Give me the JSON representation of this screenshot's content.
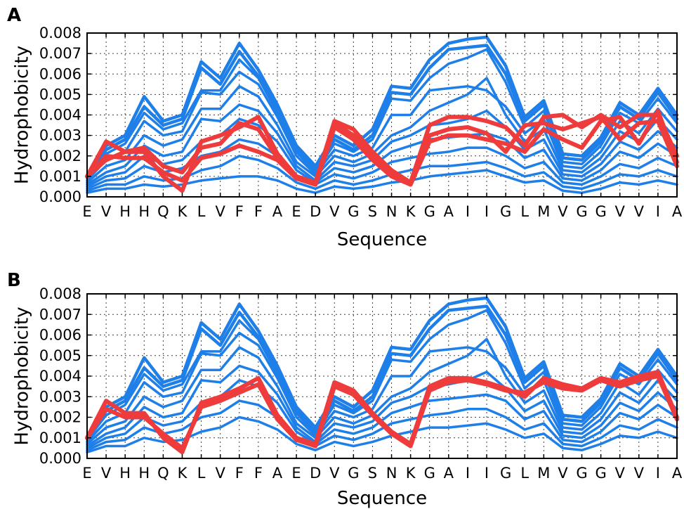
{
  "chart_data": [
    {
      "type": "line",
      "panel_label": "A",
      "xlabel": "Sequence",
      "ylabel": "Hydrophobicity",
      "categories": [
        "E",
        "V",
        "H",
        "H",
        "Q",
        "K",
        "L",
        "V",
        "F",
        "F",
        "A",
        "E",
        "D",
        "V",
        "G",
        "S",
        "N",
        "K",
        "G",
        "A",
        "I",
        "I",
        "G",
        "L",
        "M",
        "V",
        "G",
        "G",
        "V",
        "V",
        "I",
        "A"
      ],
      "ylim": [
        0,
        0.008
      ],
      "yticks": [
        "0.000",
        "0.001",
        "0.002",
        "0.003",
        "0.004",
        "0.005",
        "0.006",
        "0.007",
        "0.008"
      ],
      "grid": true,
      "colors": {
        "blue": "#1f7fe8",
        "red": "#ee3b3b"
      },
      "series": [
        {
          "color": "blue",
          "values": [
            0.001,
            0.0025,
            0.003,
            0.0049,
            0.0037,
            0.004,
            0.0066,
            0.0058,
            0.0075,
            0.0062,
            0.0045,
            0.0025,
            0.0015,
            0.003,
            0.0025,
            0.0033,
            0.0054,
            0.0053,
            0.0067,
            0.0075,
            0.0077,
            0.0078,
            0.0064,
            0.0039,
            0.0047,
            0.0021,
            0.002,
            0.0029,
            0.0046,
            0.004,
            0.0053,
            0.004
          ]
        },
        {
          "color": "blue",
          "values": [
            0.001,
            0.0023,
            0.0028,
            0.0044,
            0.0035,
            0.0038,
            0.0063,
            0.0055,
            0.0071,
            0.0059,
            0.0043,
            0.0023,
            0.0013,
            0.0028,
            0.0023,
            0.003,
            0.0051,
            0.005,
            0.0063,
            0.0072,
            0.0073,
            0.0074,
            0.006,
            0.0037,
            0.0045,
            0.0019,
            0.0018,
            0.0027,
            0.0044,
            0.0038,
            0.0051,
            0.0038
          ]
        },
        {
          "color": "blue",
          "values": [
            0.0009,
            0.0021,
            0.0026,
            0.0041,
            0.0033,
            0.0036,
            0.0052,
            0.0052,
            0.0067,
            0.0058,
            0.0041,
            0.0022,
            0.0012,
            0.0026,
            0.0022,
            0.0028,
            0.0048,
            0.0047,
            0.0058,
            0.0065,
            0.0068,
            0.0072,
            0.0056,
            0.0034,
            0.0042,
            0.0017,
            0.0016,
            0.0025,
            0.0041,
            0.0036,
            0.0048,
            0.0036
          ]
        },
        {
          "color": "blue",
          "values": [
            0.0008,
            0.0018,
            0.0022,
            0.0037,
            0.003,
            0.0032,
            0.0051,
            0.005,
            0.0061,
            0.0055,
            0.0039,
            0.002,
            0.0011,
            0.0023,
            0.002,
            0.0024,
            0.004,
            0.004,
            0.0052,
            0.0053,
            0.0054,
            0.0052,
            0.0044,
            0.0031,
            0.0038,
            0.0015,
            0.0014,
            0.0022,
            0.0037,
            0.0031,
            0.0043,
            0.0032
          ]
        },
        {
          "color": "blue",
          "values": [
            0.0007,
            0.0015,
            0.0018,
            0.003,
            0.0025,
            0.0028,
            0.0043,
            0.0043,
            0.0054,
            0.0049,
            0.0035,
            0.0017,
            0.001,
            0.002,
            0.0017,
            0.0021,
            0.003,
            0.0034,
            0.0042,
            0.0046,
            0.005,
            0.0058,
            0.004,
            0.0027,
            0.0033,
            0.0013,
            0.0012,
            0.0019,
            0.0032,
            0.0027,
            0.0038,
            0.0028
          ]
        },
        {
          "color": "blue",
          "values": [
            0.0006,
            0.0012,
            0.0015,
            0.0025,
            0.002,
            0.0022,
            0.0038,
            0.0037,
            0.0045,
            0.0042,
            0.0031,
            0.0015,
            0.0008,
            0.0017,
            0.0015,
            0.0018,
            0.0027,
            0.003,
            0.0035,
            0.0036,
            0.0038,
            0.0042,
            0.0034,
            0.0023,
            0.0028,
            0.0011,
            0.001,
            0.0016,
            0.0027,
            0.0023,
            0.0032,
            0.0024
          ]
        },
        {
          "color": "blue",
          "values": [
            0.0005,
            0.001,
            0.0012,
            0.002,
            0.0016,
            0.0018,
            0.0027,
            0.003,
            0.0038,
            0.0035,
            0.0027,
            0.0013,
            0.0007,
            0.0014,
            0.0012,
            0.0015,
            0.0022,
            0.0025,
            0.0028,
            0.0029,
            0.003,
            0.0031,
            0.0028,
            0.0019,
            0.0023,
            0.0009,
            0.0008,
            0.0013,
            0.0022,
            0.0019,
            0.0026,
            0.002
          ]
        },
        {
          "color": "blue",
          "values": [
            0.0004,
            0.0008,
            0.0009,
            0.0015,
            0.0012,
            0.0014,
            0.002,
            0.0022,
            0.0028,
            0.0026,
            0.002,
            0.001,
            0.0006,
            0.0011,
            0.0009,
            0.0012,
            0.0017,
            0.0019,
            0.0021,
            0.0022,
            0.0024,
            0.0024,
            0.002,
            0.0014,
            0.0017,
            0.0007,
            0.0006,
            0.001,
            0.0016,
            0.0014,
            0.0019,
            0.0015
          ]
        },
        {
          "color": "blue",
          "values": [
            0.0003,
            0.0006,
            0.0006,
            0.001,
            0.0008,
            0.0009,
            0.0013,
            0.0015,
            0.002,
            0.0018,
            0.0014,
            0.0007,
            0.0004,
            0.0008,
            0.0006,
            0.0008,
            0.0011,
            0.0013,
            0.0015,
            0.0015,
            0.0016,
            0.0017,
            0.0014,
            0.001,
            0.0012,
            0.0005,
            0.0004,
            0.0007,
            0.0011,
            0.001,
            0.0013,
            0.001
          ]
        },
        {
          "color": "blue",
          "values": [
            0.0002,
            0.0004,
            0.0004,
            0.0006,
            0.0005,
            0.0006,
            0.0008,
            0.0009,
            0.001,
            0.001,
            0.0008,
            0.0004,
            0.0002,
            0.0005,
            0.0004,
            0.0005,
            0.0007,
            0.0008,
            0.001,
            0.0011,
            0.0012,
            0.0013,
            0.001,
            0.0007,
            0.0008,
            0.0003,
            0.0002,
            0.0004,
            0.0007,
            0.0006,
            0.0008,
            0.0006
          ]
        },
        {
          "color": "red",
          "values": [
            0.001,
            0.0027,
            0.0022,
            0.0022,
            0.001,
            0.0003,
            0.0027,
            0.003,
            0.0034,
            0.0039,
            0.0021,
            0.001,
            0.0007,
            0.0037,
            0.0033,
            0.0022,
            0.0013,
            0.0007,
            0.0035,
            0.0039,
            0.0039,
            0.0037,
            0.0034,
            0.0025,
            0.0039,
            0.004,
            0.0034,
            0.004,
            0.0034,
            0.004,
            0.004,
            0.002
          ]
        },
        {
          "color": "red",
          "values": [
            0.001,
            0.002,
            0.0019,
            0.0019,
            0.0012,
            0.0008,
            0.0019,
            0.0021,
            0.0025,
            0.0022,
            0.0018,
            0.0009,
            0.0006,
            0.0036,
            0.003,
            0.002,
            0.0011,
            0.0006,
            0.0027,
            0.003,
            0.003,
            0.0028,
            0.0026,
            0.0022,
            0.0033,
            0.0028,
            0.0024,
            0.0037,
            0.0039,
            0.0026,
            0.0042,
            0.0017
          ]
        },
        {
          "color": "red",
          "values": [
            0.001,
            0.0018,
            0.0022,
            0.0024,
            0.0015,
            0.0012,
            0.0024,
            0.0026,
            0.0036,
            0.0033,
            0.0019,
            0.0009,
            0.0006,
            0.0034,
            0.0028,
            0.0018,
            0.001,
            0.0006,
            0.003,
            0.0033,
            0.0034,
            0.0031,
            0.0022,
            0.0035,
            0.0036,
            0.0033,
            0.0036,
            0.0039,
            0.0028,
            0.0036,
            0.0037,
            0.0015
          ]
        }
      ]
    },
    {
      "type": "line",
      "panel_label": "B",
      "xlabel": "Sequence",
      "ylabel": "Hydrophobicity",
      "categories": [
        "E",
        "V",
        "H",
        "H",
        "Q",
        "K",
        "L",
        "V",
        "F",
        "F",
        "A",
        "E",
        "D",
        "V",
        "G",
        "S",
        "N",
        "K",
        "G",
        "A",
        "I",
        "I",
        "G",
        "L",
        "M",
        "V",
        "G",
        "G",
        "V",
        "V",
        "I",
        "A"
      ],
      "ylim": [
        0,
        0.008
      ],
      "yticks": [
        "0.000",
        "0.001",
        "0.002",
        "0.003",
        "0.004",
        "0.005",
        "0.006",
        "0.007",
        "0.008"
      ],
      "grid": true,
      "colors": {
        "blue": "#1f7fe8",
        "red": "#ee3b3b"
      },
      "series": [
        {
          "color": "blue",
          "values": [
            0.001,
            0.0025,
            0.003,
            0.0049,
            0.0037,
            0.004,
            0.0066,
            0.0058,
            0.0075,
            0.0062,
            0.0045,
            0.0025,
            0.0015,
            0.003,
            0.0025,
            0.0033,
            0.0054,
            0.0053,
            0.0067,
            0.0075,
            0.0077,
            0.0078,
            0.0064,
            0.0039,
            0.0047,
            0.0021,
            0.002,
            0.0029,
            0.0046,
            0.004,
            0.0053,
            0.004
          ]
        },
        {
          "color": "blue",
          "values": [
            0.001,
            0.0023,
            0.0028,
            0.0044,
            0.0035,
            0.0038,
            0.0063,
            0.0055,
            0.0071,
            0.0059,
            0.0043,
            0.0023,
            0.0013,
            0.0028,
            0.0023,
            0.003,
            0.0051,
            0.005,
            0.0063,
            0.0072,
            0.0073,
            0.0074,
            0.006,
            0.0037,
            0.0045,
            0.0019,
            0.0018,
            0.0027,
            0.0044,
            0.0038,
            0.0051,
            0.0038
          ]
        },
        {
          "color": "blue",
          "values": [
            0.0009,
            0.0021,
            0.0026,
            0.0041,
            0.0033,
            0.0036,
            0.0052,
            0.0052,
            0.0067,
            0.0058,
            0.0041,
            0.0022,
            0.0012,
            0.0026,
            0.0022,
            0.0028,
            0.0048,
            0.0047,
            0.0058,
            0.0065,
            0.0068,
            0.0072,
            0.0056,
            0.0034,
            0.0042,
            0.0017,
            0.0016,
            0.0025,
            0.0041,
            0.0036,
            0.0048,
            0.0036
          ]
        },
        {
          "color": "blue",
          "values": [
            0.0008,
            0.0018,
            0.0022,
            0.0037,
            0.003,
            0.0032,
            0.0051,
            0.005,
            0.0061,
            0.0055,
            0.0039,
            0.002,
            0.0011,
            0.0023,
            0.002,
            0.0024,
            0.004,
            0.004,
            0.0052,
            0.0053,
            0.0054,
            0.0052,
            0.0044,
            0.0031,
            0.0038,
            0.0015,
            0.0014,
            0.0022,
            0.0037,
            0.0031,
            0.0043,
            0.0032
          ]
        },
        {
          "color": "blue",
          "values": [
            0.0007,
            0.0015,
            0.0018,
            0.003,
            0.0025,
            0.0028,
            0.0043,
            0.0043,
            0.0054,
            0.0049,
            0.0035,
            0.0017,
            0.001,
            0.002,
            0.0017,
            0.0021,
            0.003,
            0.0034,
            0.0042,
            0.0046,
            0.005,
            0.0058,
            0.004,
            0.0027,
            0.0033,
            0.0013,
            0.0012,
            0.0019,
            0.0032,
            0.0027,
            0.0038,
            0.0028
          ]
        },
        {
          "color": "blue",
          "values": [
            0.0006,
            0.0012,
            0.0015,
            0.0025,
            0.002,
            0.0022,
            0.0038,
            0.0037,
            0.0045,
            0.0042,
            0.0031,
            0.0015,
            0.0008,
            0.0017,
            0.0015,
            0.0018,
            0.0027,
            0.003,
            0.0035,
            0.0036,
            0.0038,
            0.0042,
            0.0034,
            0.0023,
            0.0028,
            0.0011,
            0.001,
            0.0016,
            0.0027,
            0.0023,
            0.0032,
            0.0024
          ]
        },
        {
          "color": "blue",
          "values": [
            0.0005,
            0.001,
            0.0012,
            0.002,
            0.0016,
            0.0018,
            0.0027,
            0.003,
            0.0038,
            0.0035,
            0.0027,
            0.0013,
            0.0007,
            0.0014,
            0.0012,
            0.0015,
            0.0022,
            0.0025,
            0.0028,
            0.0029,
            0.003,
            0.0031,
            0.0028,
            0.0019,
            0.0023,
            0.0009,
            0.0008,
            0.0013,
            0.0022,
            0.0019,
            0.0026,
            0.002
          ]
        },
        {
          "color": "blue",
          "values": [
            0.0004,
            0.0008,
            0.0009,
            0.0015,
            0.0012,
            0.0014,
            0.002,
            0.0022,
            0.0028,
            0.0026,
            0.002,
            0.001,
            0.0006,
            0.0011,
            0.0009,
            0.0012,
            0.0017,
            0.0019,
            0.0021,
            0.0022,
            0.0024,
            0.0024,
            0.002,
            0.0014,
            0.0017,
            0.0007,
            0.0006,
            0.001,
            0.0016,
            0.0014,
            0.0019,
            0.0015
          ]
        },
        {
          "color": "blue",
          "values": [
            0.0003,
            0.0006,
            0.0006,
            0.001,
            0.0008,
            0.0009,
            0.0013,
            0.0015,
            0.002,
            0.0018,
            0.0014,
            0.0007,
            0.0004,
            0.0008,
            0.0006,
            0.0008,
            0.0011,
            0.0013,
            0.0015,
            0.0015,
            0.0016,
            0.0017,
            0.0014,
            0.001,
            0.0012,
            0.0005,
            0.0004,
            0.0007,
            0.0011,
            0.001,
            0.0013,
            0.001
          ]
        },
        {
          "color": "red",
          "values": [
            0.001,
            0.0028,
            0.0022,
            0.0022,
            0.001,
            0.0003,
            0.0027,
            0.003,
            0.0034,
            0.0039,
            0.0021,
            0.001,
            0.0007,
            0.0037,
            0.0033,
            0.0022,
            0.0013,
            0.0007,
            0.0035,
            0.0039,
            0.0039,
            0.0037,
            0.0034,
            0.003,
            0.0039,
            0.0036,
            0.0034,
            0.0039,
            0.0037,
            0.004,
            0.0042,
            0.002
          ]
        },
        {
          "color": "red",
          "values": [
            0.001,
            0.0024,
            0.002,
            0.002,
            0.0012,
            0.0005,
            0.0025,
            0.0028,
            0.0032,
            0.0036,
            0.0019,
            0.0009,
            0.0006,
            0.0035,
            0.0031,
            0.0021,
            0.0012,
            0.0006,
            0.0033,
            0.0037,
            0.0038,
            0.0036,
            0.0033,
            0.0032,
            0.0037,
            0.0034,
            0.0033,
            0.0038,
            0.0035,
            0.0038,
            0.004,
            0.0019
          ]
        }
      ]
    }
  ]
}
